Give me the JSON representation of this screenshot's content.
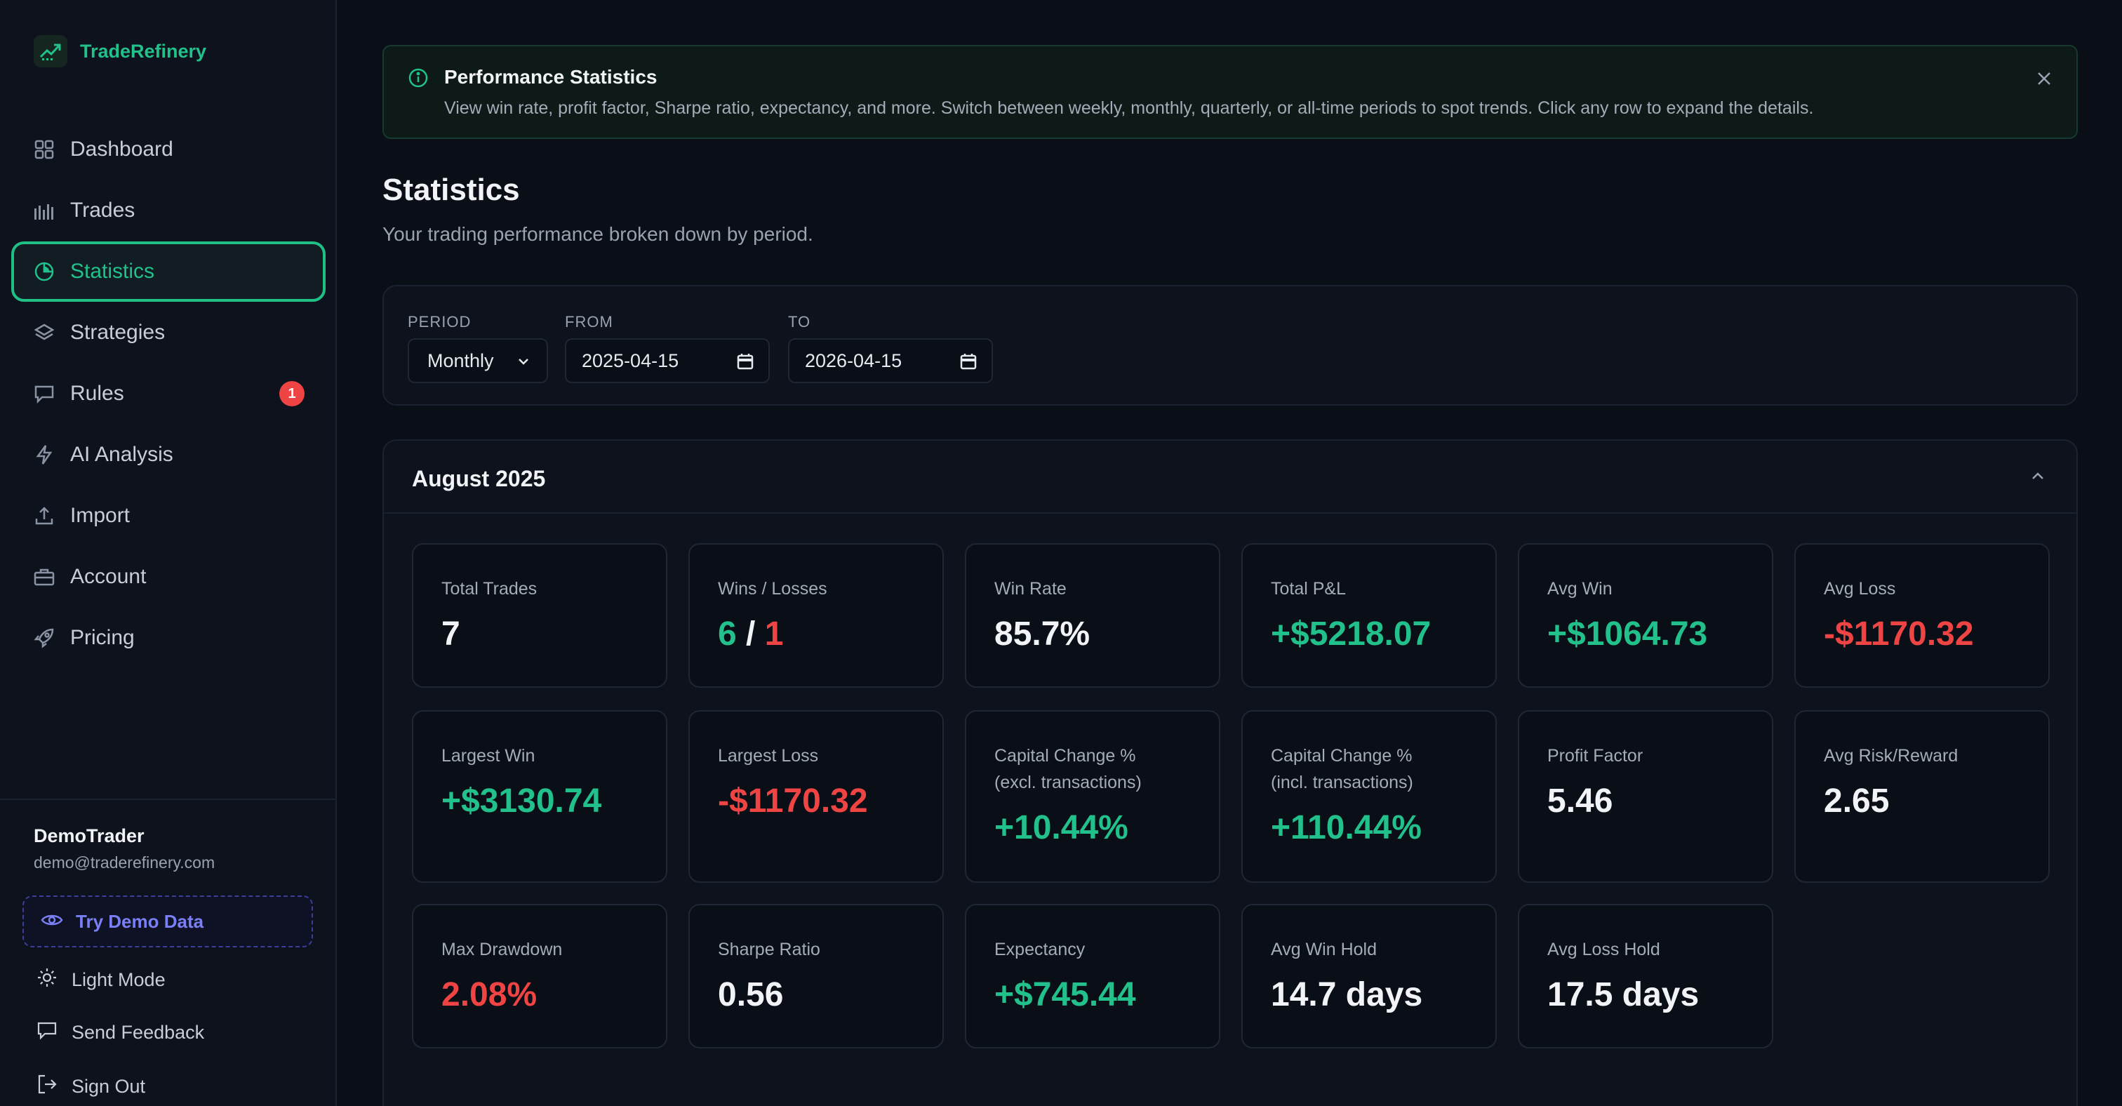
{
  "brand": {
    "name": "TradeRefinery"
  },
  "sidebar": {
    "items": [
      {
        "label": "Dashboard",
        "icon": "grid-icon"
      },
      {
        "label": "Trades",
        "icon": "bars-icon"
      },
      {
        "label": "Statistics",
        "icon": "pie-chart-icon",
        "active": true
      },
      {
        "label": "Strategies",
        "icon": "layers-icon"
      },
      {
        "label": "Rules",
        "icon": "message-icon",
        "badge": "1"
      },
      {
        "label": "AI Analysis",
        "icon": "bolt-icon"
      },
      {
        "label": "Import",
        "icon": "upload-icon"
      },
      {
        "label": "Account",
        "icon": "briefcase-icon"
      },
      {
        "label": "Pricing",
        "icon": "rocket-icon"
      }
    ],
    "user": {
      "name": "DemoTrader",
      "email": "demo@traderefinery.com"
    },
    "demo_label": "Try Demo Data",
    "light_mode_label": "Light Mode",
    "feedback_label": "Send Feedback",
    "signout_label": "Sign Out"
  },
  "banner": {
    "title": "Performance Statistics",
    "text": "View win rate, profit factor, Sharpe ratio, expectancy, and more. Switch between weekly, monthly, quarterly, or all-time periods to spot trends. Click any row to expand the details."
  },
  "page": {
    "title": "Statistics",
    "subtitle": "Your trading performance broken down by period."
  },
  "filters": {
    "period_label": "PERIOD",
    "period_value": "Monthly",
    "from_label": "FROM",
    "from_value": "2025-04-15",
    "to_label": "TO",
    "to_value": "2026-04-15"
  },
  "period": {
    "title": "August 2025",
    "stats": {
      "total_trades": {
        "label": "Total Trades",
        "value": "7"
      },
      "wins_losses": {
        "label": "Wins / Losses",
        "wins": "6",
        "sep": "/",
        "losses": "1"
      },
      "win_rate": {
        "label": "Win Rate",
        "value": "85.7%"
      },
      "total_pnl": {
        "label": "Total P&L",
        "value": "+$5218.07"
      },
      "avg_win": {
        "label": "Avg Win",
        "value": "+$1064.73"
      },
      "avg_loss": {
        "label": "Avg Loss",
        "value": "-$1170.32"
      },
      "largest_win": {
        "label": "Largest Win",
        "value": "+$3130.74"
      },
      "largest_loss": {
        "label": "Largest Loss",
        "value": "-$1170.32"
      },
      "cap_excl": {
        "label1": "Capital Change %",
        "label2": "(excl. transactions)",
        "value": "+10.44%"
      },
      "cap_incl": {
        "label1": "Capital Change %",
        "label2": "(incl. transactions)",
        "value": "+110.44%"
      },
      "profit_factor": {
        "label": "Profit Factor",
        "value": "5.46"
      },
      "avg_rr": {
        "label": "Avg Risk/Reward",
        "value": "2.65"
      },
      "max_dd": {
        "label": "Max Drawdown",
        "value": "2.08%"
      },
      "sharpe": {
        "label": "Sharpe Ratio",
        "value": "0.56"
      },
      "expectancy": {
        "label": "Expectancy",
        "value": "+$745.44"
      },
      "avg_win_hold": {
        "label": "Avg Win Hold",
        "value": "14.7 days"
      },
      "avg_loss_hold": {
        "label": "Avg Loss Hold",
        "value": "17.5 days"
      }
    }
  },
  "colors": {
    "accent": "#22c08a",
    "negative": "#ef4444",
    "demo": "#7b7ff5"
  }
}
